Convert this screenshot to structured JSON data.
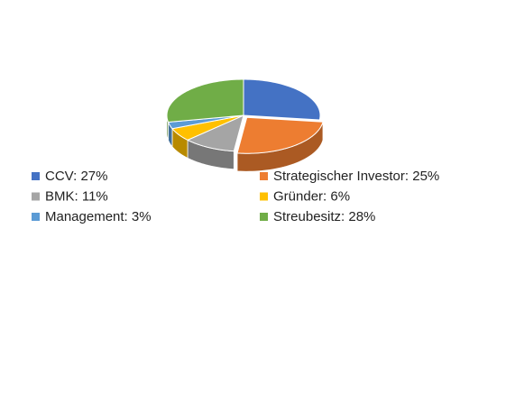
{
  "chart_data": {
    "type": "pie3d",
    "categories": [
      "CCV: 27%",
      "Strategischer Investor: 25%",
      "BMK: 11%",
      "Gründer: 6%",
      "Management: 3%",
      "Streubesitz: 28%"
    ],
    "values": [
      27,
      25,
      11,
      6,
      3,
      28
    ],
    "colors": [
      "#4472c4",
      "#ed7d31",
      "#a5a5a5",
      "#ffc000",
      "#5b9bd5",
      "#70ad47"
    ],
    "legend": "bottom"
  }
}
